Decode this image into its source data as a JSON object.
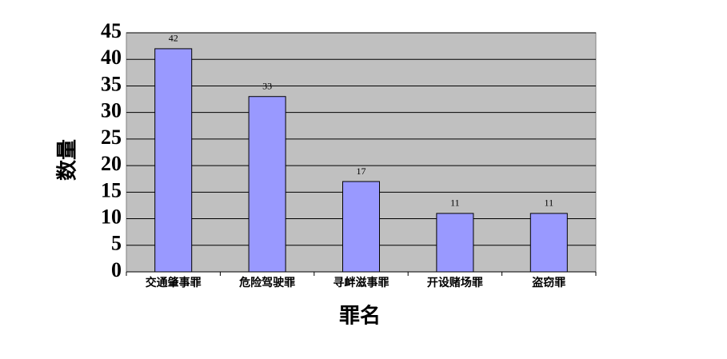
{
  "chart_data": {
    "type": "bar",
    "x_label": "罪名",
    "y_label": "数量",
    "categories": [
      "交通肇事罪",
      "危险驾驶罪",
      "寻衅滋事罪",
      "开设赌场罪",
      "盗窃罪"
    ],
    "values": [
      42,
      33,
      17,
      11,
      11
    ],
    "color": "#9999ff",
    "ylim": [
      0,
      45
    ],
    "yticks": [
      0,
      5,
      10,
      15,
      20,
      25,
      30,
      35,
      40,
      45
    ],
    "grid": true
  }
}
